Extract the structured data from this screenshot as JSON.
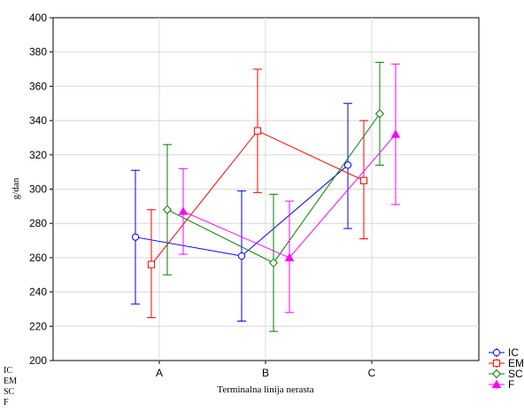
{
  "chart_data": {
    "type": "line",
    "xlabel": "Terminalna linija nerasta",
    "ylabel": "g/dan",
    "categories": [
      "A",
      "B",
      "C"
    ],
    "ylim": [
      200,
      400
    ],
    "yticks": [
      200,
      220,
      240,
      260,
      280,
      300,
      320,
      340,
      360,
      380,
      400
    ],
    "grid": true,
    "legend_position": "bottom-right",
    "series": [
      {
        "name": "IC",
        "color": "#0000ff",
        "marker": "circle",
        "values": [
          272,
          261,
          314
        ],
        "lower": [
          233,
          223,
          277
        ],
        "upper": [
          311,
          299,
          350
        ]
      },
      {
        "name": "EM",
        "color": "#ff0000",
        "marker": "square",
        "values": [
          256,
          334,
          305
        ],
        "lower": [
          225,
          298,
          271
        ],
        "upper": [
          288,
          370,
          340
        ]
      },
      {
        "name": "SC",
        "color": "#008000",
        "marker": "diamond",
        "values": [
          288,
          257,
          344
        ],
        "lower": [
          250,
          217,
          314
        ],
        "upper": [
          326,
          297,
          374
        ]
      },
      {
        "name": "F",
        "color": "#ff00ff",
        "marker": "triangle",
        "values": [
          287,
          260,
          332
        ],
        "lower": [
          262,
          228,
          291
        ],
        "upper": [
          312,
          293,
          373
        ]
      }
    ],
    "side_labels": [
      "IC",
      "EM",
      "SC",
      "F"
    ]
  }
}
